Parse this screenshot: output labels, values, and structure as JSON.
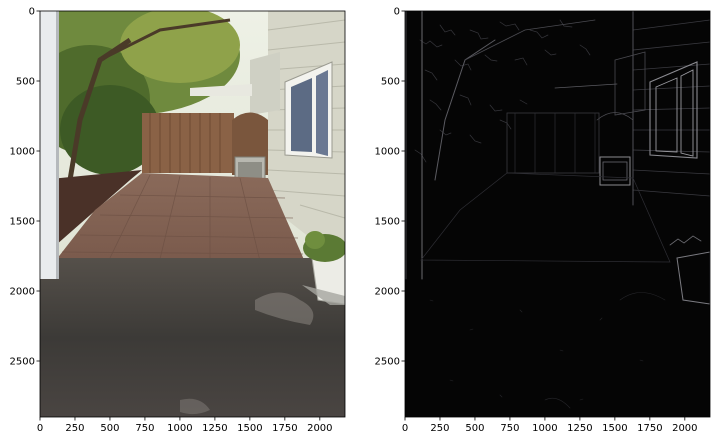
{
  "figure": {
    "panels": [
      {
        "id": "left",
        "image_subject": "backyard patio photo",
        "xticks": [
          0,
          250,
          500,
          750,
          1000,
          1250,
          1500,
          1750,
          2000
        ],
        "yticks": [
          0,
          500,
          1000,
          1500,
          2000,
          2500
        ],
        "xlim": [
          0,
          2180
        ],
        "ylim": [
          0,
          2900
        ]
      },
      {
        "id": "right",
        "image_subject": "edge-detection output of the same photo",
        "xticks": [
          0,
          250,
          500,
          750,
          1000,
          1250,
          1500,
          1750,
          2000
        ],
        "yticks": [
          0,
          500,
          1000,
          1500,
          2000,
          2500
        ],
        "xlim": [
          0,
          2180
        ],
        "ylim": [
          0,
          2900
        ]
      }
    ]
  }
}
